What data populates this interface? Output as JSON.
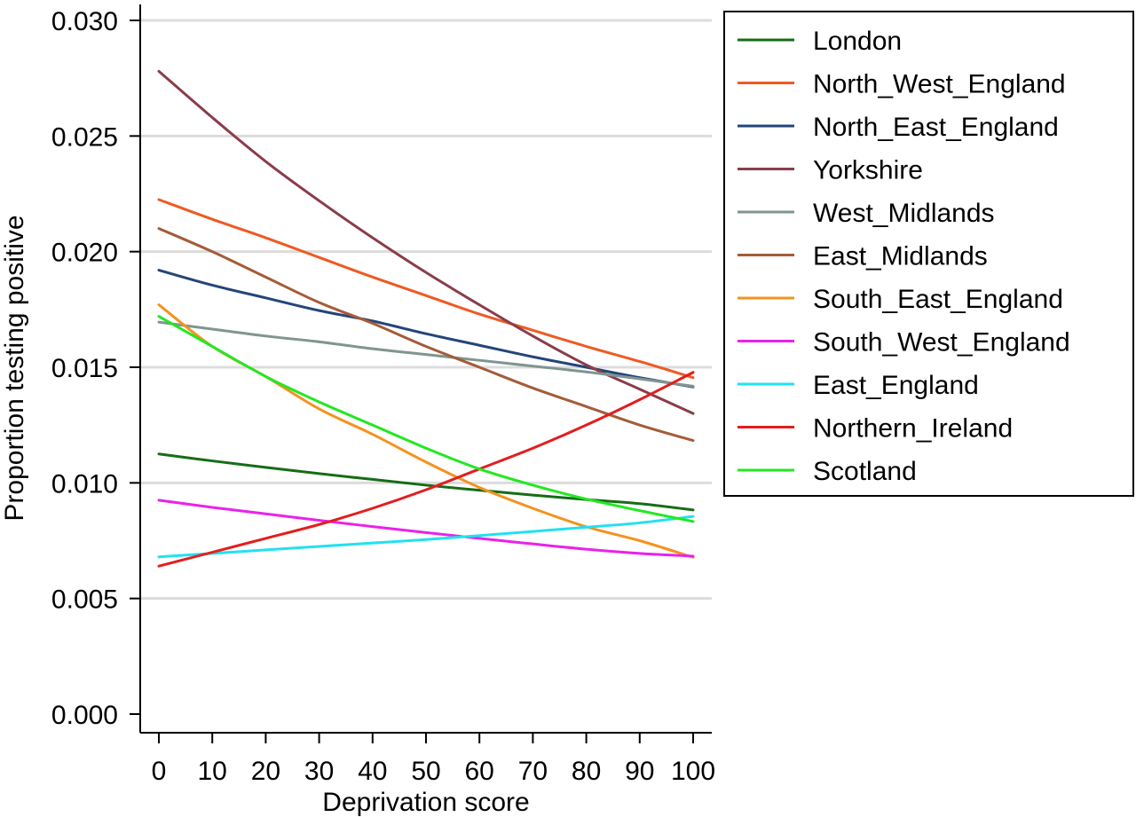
{
  "chart_data": {
    "type": "line",
    "title": "",
    "xlabel": "Deprivation score",
    "ylabel": "Proportion testing positive",
    "xlim": [
      0,
      100
    ],
    "ylim": [
      0,
      0.03
    ],
    "x_ticks": [
      0,
      10,
      20,
      30,
      40,
      50,
      60,
      70,
      80,
      90,
      100
    ],
    "x_tick_labels": [
      "0",
      "10",
      "20",
      "30",
      "40",
      "50",
      "60",
      "70",
      "80",
      "90",
      "100"
    ],
    "y_ticks": [
      0,
      0.005,
      0.01,
      0.015,
      0.02,
      0.025,
      0.03
    ],
    "y_tick_labels": [
      "0.000",
      "0.005",
      "0.010",
      "0.015",
      "0.020",
      "0.025",
      "0.030"
    ],
    "grid": "horizontal",
    "legend_position": "right",
    "x": [
      0,
      10,
      20,
      30,
      40,
      50,
      60,
      70,
      80,
      90,
      100
    ],
    "series": [
      {
        "name": "London",
        "color": "#156d15",
        "values": [
          0.01125,
          0.01095,
          0.01067,
          0.0104,
          0.01015,
          0.0099,
          0.00968,
          0.00947,
          0.00928,
          0.0091,
          0.00883
        ]
      },
      {
        "name": "North_West_England",
        "color": "#ee5a23",
        "values": [
          0.02225,
          0.0214,
          0.0206,
          0.01975,
          0.0189,
          0.0181,
          0.0173,
          0.0166,
          0.0159,
          0.01525,
          0.01455
        ]
      },
      {
        "name": "North_East_England",
        "color": "#23457a",
        "values": [
          0.0192,
          0.01855,
          0.018,
          0.01745,
          0.017,
          0.01645,
          0.01595,
          0.01545,
          0.015,
          0.01455,
          0.01415
        ]
      },
      {
        "name": "Yorkshire",
        "color": "#8a3c4a",
        "values": [
          0.0278,
          0.0258,
          0.0239,
          0.0222,
          0.0206,
          0.0191,
          0.0177,
          0.01635,
          0.0151,
          0.01405,
          0.013
        ]
      },
      {
        "name": "West_Midlands",
        "color": "#7f9590",
        "values": [
          0.01695,
          0.01665,
          0.01635,
          0.0161,
          0.0158,
          0.01555,
          0.0153,
          0.01505,
          0.0148,
          0.0145,
          0.01418
        ]
      },
      {
        "name": "East_Midlands",
        "color": "#a45c38",
        "values": [
          0.021,
          0.02,
          0.0189,
          0.0178,
          0.0169,
          0.0159,
          0.015,
          0.0141,
          0.0133,
          0.0125,
          0.01183
        ]
      },
      {
        "name": "South_East_England",
        "color": "#f5921e",
        "values": [
          0.0177,
          0.0159,
          0.0146,
          0.0132,
          0.0121,
          0.0109,
          0.0098,
          0.0089,
          0.0081,
          0.0075,
          0.00678
        ]
      },
      {
        "name": "South_West_England",
        "color": "#ea22ea",
        "values": [
          0.00925,
          0.00894,
          0.00866,
          0.00838,
          0.00811,
          0.00785,
          0.0076,
          0.00736,
          0.00713,
          0.00695,
          0.00683
        ]
      },
      {
        "name": "East_England",
        "color": "#22e0f2",
        "values": [
          0.0068,
          0.00695,
          0.0071,
          0.00725,
          0.0074,
          0.00755,
          0.00772,
          0.0079,
          0.00808,
          0.00827,
          0.00855
        ]
      },
      {
        "name": "Northern_Ireland",
        "color": "#e31e1e",
        "values": [
          0.0064,
          0.007,
          0.0076,
          0.0082,
          0.0089,
          0.0097,
          0.0106,
          0.0115,
          0.0125,
          0.0136,
          0.01478
        ]
      },
      {
        "name": "Scotland",
        "color": "#22e822",
        "values": [
          0.0172,
          0.0159,
          0.0146,
          0.0135,
          0.0125,
          0.0115,
          0.0106,
          0.0099,
          0.0093,
          0.0088,
          0.00833
        ]
      }
    ]
  }
}
